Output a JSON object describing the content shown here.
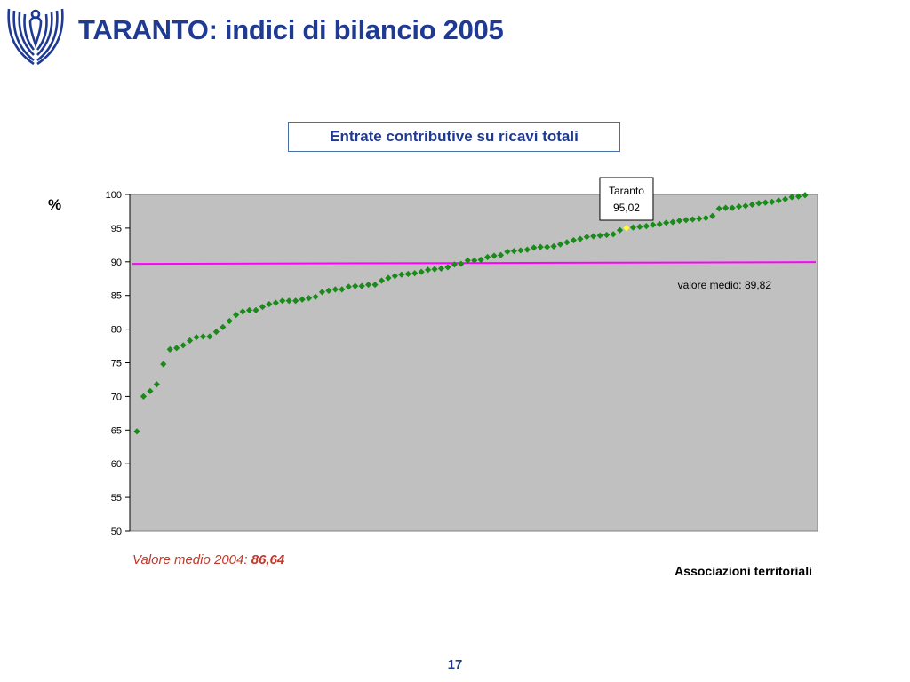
{
  "slide": {
    "title": "TARANTO: indici di bilancio 2005",
    "page_number": "17",
    "footnote_label": "Valore medio 2004:",
    "footnote_value": "86,64"
  },
  "colors": {
    "title": "#1f3a93",
    "plot_background": "#c0c0c0",
    "marker": "#1a8a1a",
    "highlight_marker": "#ffff33",
    "average_line": "#ff00ff",
    "footnote": "#c0392b"
  },
  "icons": {
    "logo": "confindustria-eagle-logo"
  },
  "chart_data": {
    "type": "scatter",
    "title": "Entrate contributive su ricavi totali",
    "ylabel": "%",
    "xlabel": "Associazioni territoriali",
    "ylim": [
      50,
      100
    ],
    "yticks": [
      50,
      55,
      60,
      65,
      70,
      75,
      80,
      85,
      90,
      95,
      100
    ],
    "ytick_labels": [
      "50",
      "55",
      "60",
      "65",
      "70",
      "75",
      "80",
      "85",
      "90",
      "95",
      "100"
    ],
    "grid": false,
    "x_tick_labels": false,
    "values": [
      64.8,
      70.0,
      70.8,
      71.8,
      74.8,
      77.0,
      77.2,
      77.6,
      78.3,
      78.8,
      78.9,
      78.9,
      79.6,
      80.3,
      81.2,
      82.1,
      82.6,
      82.8,
      82.8,
      83.3,
      83.7,
      83.9,
      84.2,
      84.2,
      84.2,
      84.4,
      84.6,
      84.8,
      85.5,
      85.7,
      85.9,
      85.9,
      86.3,
      86.4,
      86.4,
      86.6,
      86.6,
      87.2,
      87.6,
      87.9,
      88.1,
      88.2,
      88.3,
      88.5,
      88.8,
      88.9,
      89.0,
      89.2,
      89.6,
      89.7,
      90.2,
      90.2,
      90.3,
      90.7,
      90.9,
      91.0,
      91.5,
      91.6,
      91.7,
      91.8,
      92.1,
      92.2,
      92.2,
      92.3,
      92.6,
      92.9,
      93.2,
      93.4,
      93.7,
      93.8,
      93.9,
      94.0,
      94.1,
      94.7,
      95.02,
      95.1,
      95.2,
      95.3,
      95.5,
      95.6,
      95.8,
      95.9,
      96.1,
      96.2,
      96.3,
      96.4,
      96.5,
      96.8,
      97.9,
      98.0,
      98.0,
      98.2,
      98.3,
      98.5,
      98.7,
      98.8,
      98.9,
      99.1,
      99.3,
      99.6,
      99.7,
      99.9
    ],
    "highlight": {
      "index": 74,
      "name": "Taranto",
      "value": 95.02,
      "label": "Taranto",
      "value_label": "95,02"
    },
    "average": {
      "value": 89.82,
      "label": "valore medio:",
      "value_label": "89,82"
    }
  }
}
